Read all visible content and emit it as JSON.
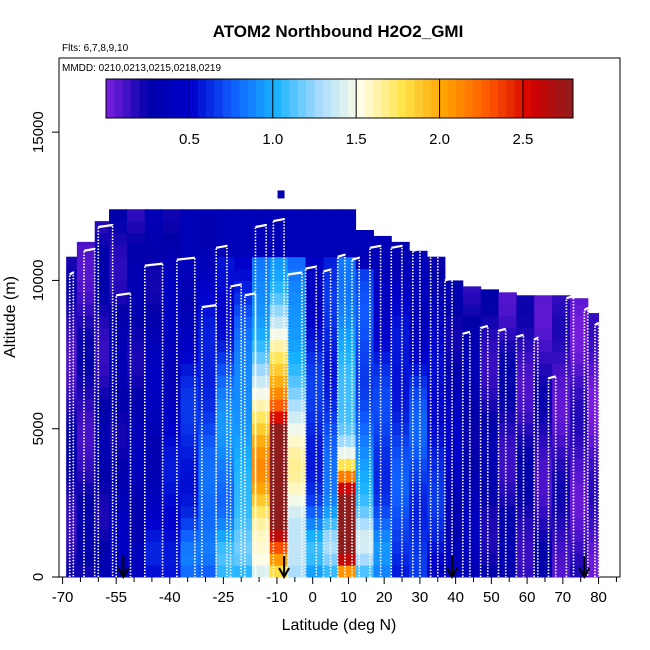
{
  "chart_data": {
    "type": "heatmap",
    "title": "ATOM2 Northbound H2O2_GMI",
    "flights_label": "Flts: 6,7,8,9,10",
    "dates_label": "MMDD: 0210,0213,0215,0218,0219",
    "xlabel": "Latitude (deg N)",
    "ylabel": "Altitude (m)",
    "x_ticks": [
      -70,
      -55,
      -40,
      -25,
      -10,
      0,
      10,
      20,
      30,
      40,
      50,
      60,
      70,
      80
    ],
    "x_minor_ticks": [
      -65,
      -60,
      -50,
      -45,
      -35,
      -30,
      -20,
      -15,
      -5,
      5,
      15,
      25,
      35,
      45,
      55,
      65,
      75,
      85
    ],
    "y_ticks": [
      0,
      5000,
      10000,
      15000
    ],
    "xlim": [
      -71,
      86
    ],
    "ylim": [
      0,
      17500
    ],
    "colorbar": {
      "min": 0,
      "max": 2.8,
      "ticks": [
        0.5,
        1.0,
        1.5,
        2.0,
        2.5
      ],
      "tick_labels": [
        "0.5",
        "1.0",
        "1.5",
        "2.0",
        "2.5"
      ],
      "colors": [
        "#7d1fe0",
        "#0000a8",
        "#0000cc",
        "#0f5fff",
        "#17b2ff",
        "#a5dbff",
        "#fffde6",
        "#ffe34a",
        "#ffa000",
        "#ff5a00",
        "#d50000",
        "#8e1d1d"
      ]
    },
    "columns": [
      {
        "x0": -69,
        "x1": -66,
        "top": 10800,
        "mid": 0.2
      },
      {
        "x0": -66,
        "x1": -61,
        "top": 11300,
        "mid": 0.2
      },
      {
        "x0": -61,
        "x1": -57,
        "top": 12000,
        "mid": 0.25
      },
      {
        "x0": -57,
        "x1": -52,
        "top": 12400,
        "mid": 0.3
      },
      {
        "x0": -52,
        "x1": -47,
        "top": 12400,
        "mid": 0.3
      },
      {
        "x0": -47,
        "x1": -42,
        "top": 12400,
        "mid": 0.35
      },
      {
        "x0": -42,
        "x1": -37,
        "top": 12400,
        "mid": 0.4
      },
      {
        "x0": -37,
        "x1": -32,
        "top": 12400,
        "mid": 0.45
      },
      {
        "x0": -32,
        "x1": -27,
        "top": 12400,
        "mid": 0.5
      },
      {
        "x0": -27,
        "x1": -22,
        "top": 12400,
        "mid": 0.6
      },
      {
        "x0": -22,
        "x1": -17,
        "top": 12400,
        "mid": 0.7
      },
      {
        "x0": -17,
        "x1": -12,
        "top": 12400,
        "mid": 0.9
      },
      {
        "x0": -12,
        "x1": -7,
        "top": 12400,
        "mid": 1.2
      },
      {
        "x0": -7,
        "x1": -2,
        "top": 12400,
        "mid": 0.9
      },
      {
        "x0": -2,
        "x1": 3,
        "top": 12400,
        "mid": 0.6
      },
      {
        "x0": 3,
        "x1": 7,
        "top": 12400,
        "mid": 0.7
      },
      {
        "x0": 7,
        "x1": 12,
        "top": 12400,
        "mid": 1.1
      },
      {
        "x0": 12,
        "x1": 17,
        "top": 11700,
        "mid": 0.8
      },
      {
        "x0": 17,
        "x1": 22,
        "top": 11500,
        "mid": 0.6
      },
      {
        "x0": 22,
        "x1": 27,
        "top": 11300,
        "mid": 0.5
      },
      {
        "x0": 27,
        "x1": 32,
        "top": 11000,
        "mid": 0.45
      },
      {
        "x0": 32,
        "x1": 37,
        "top": 10800,
        "mid": 0.4
      },
      {
        "x0": 37,
        "x1": 42,
        "top": 10000,
        "mid": 0.3
      },
      {
        "x0": 42,
        "x1": 47,
        "top": 9800,
        "mid": 0.3
      },
      {
        "x0": 47,
        "x1": 52,
        "top": 9700,
        "mid": 0.25
      },
      {
        "x0": 52,
        "x1": 57,
        "top": 9600,
        "mid": 0.22
      },
      {
        "x0": 57,
        "x1": 62,
        "top": 9500,
        "mid": 0.2
      },
      {
        "x0": 62,
        "x1": 67,
        "top": 9500,
        "mid": 0.18
      },
      {
        "x0": 67,
        "x1": 72,
        "top": 9500,
        "mid": 0.15
      },
      {
        "x0": 72,
        "x1": 77,
        "top": 9400,
        "mid": 0.12
      },
      {
        "x0": 77,
        "x1": 80,
        "top": 8900,
        "mid": 0.1
      }
    ],
    "hotspots": [
      {
        "x": -10,
        "y": 3200,
        "sx": 3.0,
        "sy": 1300,
        "amp": 2.3
      },
      {
        "x": -10,
        "y": 5500,
        "sx": 4.5,
        "sy": 2200,
        "amp": 0.8
      },
      {
        "x": 10,
        "y": 2200,
        "sx": 2.0,
        "sy": 1200,
        "amp": 1.9
      },
      {
        "x": 10,
        "y": 1200,
        "sx": 5.0,
        "sy": 700,
        "amp": 0.6
      },
      {
        "x": -15,
        "y": 700,
        "sx": 22,
        "sy": 800,
        "amp": 0.35
      },
      {
        "x": -25,
        "y": 4500,
        "sx": 10,
        "sy": 2500,
        "amp": 0.3
      },
      {
        "x": 30,
        "y": 4500,
        "sx": 7,
        "sy": 2500,
        "amp": 0.3
      }
    ],
    "profiles": [
      {
        "x0": -68,
        "x1": -67,
        "top": 10200
      },
      {
        "x0": -64,
        "x1": -61,
        "top": 11000
      },
      {
        "x0": -60,
        "x1": -56,
        "top": 11800
      },
      {
        "x0": -55,
        "x1": -51,
        "top": 9500
      },
      {
        "x0": -47,
        "x1": -42,
        "top": 10500
      },
      {
        "x0": -38,
        "x1": -33,
        "top": 10700
      },
      {
        "x0": -31,
        "x1": -27,
        "top": 9100
      },
      {
        "x0": -27,
        "x1": -24,
        "top": 11100
      },
      {
        "x0": -23,
        "x1": -20,
        "top": 9800
      },
      {
        "x0": -19,
        "x1": -16,
        "top": 9500
      },
      {
        "x0": -16,
        "x1": -13,
        "top": 11800
      },
      {
        "x0": -11,
        "x1": -8,
        "top": 12000
      },
      {
        "x0": -7,
        "x1": -3,
        "top": 10200
      },
      {
        "x0": -2,
        "x1": 1,
        "top": 10400
      },
      {
        "x0": 3,
        "x1": 5,
        "top": 10300
      },
      {
        "x0": 7,
        "x1": 9,
        "top": 10800
      },
      {
        "x0": 11,
        "x1": 13,
        "top": 10700
      },
      {
        "x0": 16,
        "x1": 19,
        "top": 11100
      },
      {
        "x0": 22,
        "x1": 25,
        "top": 11100
      },
      {
        "x0": 28,
        "x1": 30,
        "top": 11000
      },
      {
        "x0": 33,
        "x1": 35,
        "top": 11000
      },
      {
        "x0": 37,
        "x1": 39,
        "top": 10000
      },
      {
        "x0": 42,
        "x1": 44,
        "top": 8200
      },
      {
        "x0": 47,
        "x1": 49,
        "top": 8400
      },
      {
        "x0": 52,
        "x1": 54,
        "top": 8300
      },
      {
        "x0": 57,
        "x1": 59,
        "top": 8100
      },
      {
        "x0": 62,
        "x1": 63,
        "top": 8000
      },
      {
        "x0": 66,
        "x1": 68,
        "top": 6700
      },
      {
        "x0": 71,
        "x1": 73,
        "top": 9400
      },
      {
        "x0": 76,
        "x1": 77,
        "top": 9000
      },
      {
        "x0": 79,
        "x1": 80,
        "top": 8500
      }
    ],
    "arrows_x": [
      -53,
      -8,
      39,
      76
    ],
    "isolated_point": {
      "x": -9,
      "y": 12900
    }
  }
}
